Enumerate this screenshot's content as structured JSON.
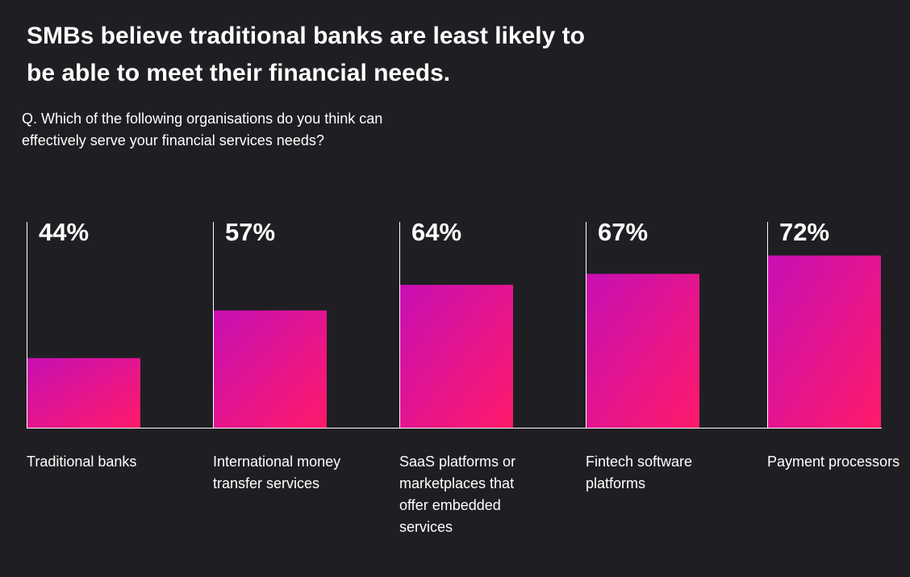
{
  "chart_data": {
    "type": "bar",
    "title": "SMBs believe traditional banks are least likely to be able to meet their financial needs.",
    "subtitle": "Q. Which of the following organisations do you think can effectively serve your financial services needs?",
    "categories": [
      "Traditional banks",
      "International money transfer services",
      "SaaS platforms or marketplaces that offer embedded services",
      "Fintech software platforms",
      "Payment processors"
    ],
    "values": [
      44,
      57,
      64,
      67,
      72
    ],
    "value_labels": [
      "44%",
      "57%",
      "64%",
      "67%",
      "72%"
    ],
    "colors": [
      "#c70fb4",
      "#ff1a6a"
    ],
    "ylim": [
      25,
      75
    ]
  }
}
